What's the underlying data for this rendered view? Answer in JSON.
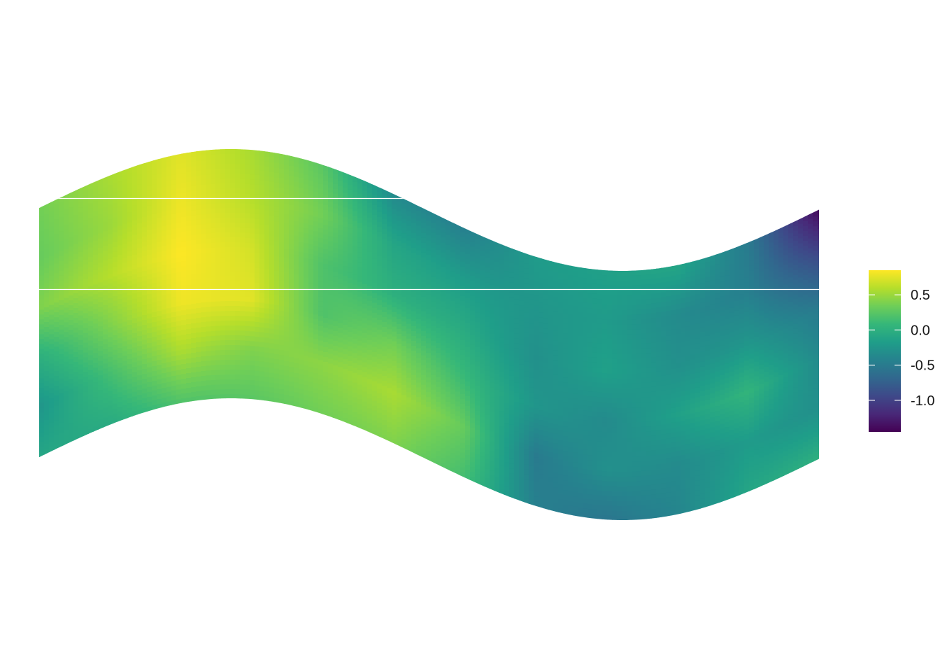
{
  "chart_data": {
    "type": "heatmap",
    "title": "",
    "xlabel": "",
    "ylabel": "",
    "grid": true,
    "legend_placement": "right",
    "colormap": "viridis",
    "value_range": [
      -1.45,
      0.85
    ],
    "legend_ticks": [
      {
        "value": 0.5,
        "label": "0.5"
      },
      {
        "value": 0.0,
        "label": "0.0"
      },
      {
        "value": -0.5,
        "label": "-0.5"
      },
      {
        "value": -1.0,
        "label": "-1.0"
      }
    ],
    "field": {
      "note_rows": "values sampled left-to-right, top (upper boundary) to bottom (lower boundary) of the wavy band",
      "rows": [
        [
          0.35,
          0.55,
          0.75,
          0.55,
          0.25,
          -0.35,
          -0.45,
          -0.2,
          -0.15,
          -0.1,
          -0.5,
          -1.4
        ],
        [
          0.3,
          0.5,
          0.8,
          0.6,
          0.35,
          -0.1,
          -0.2,
          -0.25,
          -0.2,
          -0.35,
          -0.45,
          -0.9
        ],
        [
          0.4,
          0.6,
          0.85,
          0.7,
          0.2,
          0.0,
          -0.05,
          -0.3,
          -0.15,
          -0.3,
          -0.25,
          -0.5
        ],
        [
          0.0,
          0.4,
          0.8,
          0.75,
          0.2,
          0.35,
          0.1,
          -0.25,
          -0.35,
          -0.15,
          0.05,
          -0.35
        ],
        [
          -0.25,
          0.15,
          0.55,
          0.4,
          0.45,
          0.55,
          0.3,
          -0.5,
          -0.3,
          -0.35,
          -0.2,
          -0.3
        ],
        [
          -0.1,
          -0.05,
          0.2,
          0.25,
          0.35,
          0.4,
          0.15,
          -0.45,
          -0.55,
          -0.4,
          -0.1,
          0.0
        ]
      ]
    }
  }
}
